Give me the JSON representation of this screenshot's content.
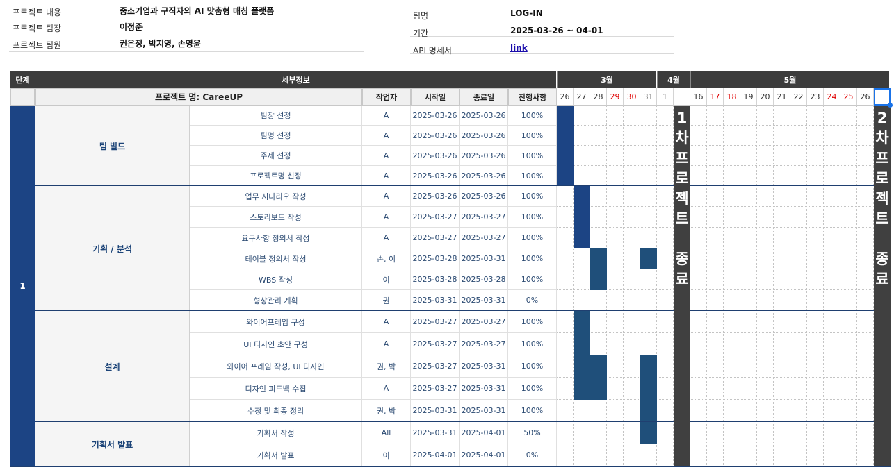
{
  "info_left": [
    {
      "label": "프로젝트 내용",
      "value": "중소기업과 구직자의 AI 맞춤형 매칭 플랫폼"
    },
    {
      "label": "프로젝트 팀장",
      "value": "이정준"
    },
    {
      "label": "프로젝트 팀원",
      "value": "권은정, 박지영, 손영윤"
    }
  ],
  "info_right": [
    {
      "label": "팀명",
      "value": "LOG-IN"
    },
    {
      "label": "기간",
      "value": "2025-03-26 ~ 04-01"
    },
    {
      "label": "API 명세서",
      "value": "link"
    }
  ],
  "header": {
    "stage": "단계",
    "detail": "세부정보",
    "project_name": "프로젝트 명: CareeUP",
    "worker": "작업자",
    "start": "시작일",
    "end": "종료일",
    "progress": "진행사항"
  },
  "months": [
    {
      "label": "3월"
    },
    {
      "label": "4월"
    },
    {
      "label": "5월"
    }
  ],
  "dates": [
    {
      "label": "26",
      "red": false
    },
    {
      "label": "27",
      "red": false
    },
    {
      "label": "28",
      "red": false
    },
    {
      "label": "29",
      "red": true
    },
    {
      "label": "30",
      "red": true
    },
    {
      "label": "31",
      "red": false
    },
    {
      "label": "1",
      "red": false
    },
    {
      "label": "",
      "red": false
    },
    {
      "label": "16",
      "red": false
    },
    {
      "label": "17",
      "red": true
    },
    {
      "label": "18",
      "red": true
    },
    {
      "label": "19",
      "red": false
    },
    {
      "label": "20",
      "red": false
    },
    {
      "label": "21",
      "red": false
    },
    {
      "label": "22",
      "red": false
    },
    {
      "label": "23",
      "red": false
    },
    {
      "label": "24",
      "red": true
    },
    {
      "label": "25",
      "red": true
    },
    {
      "label": "26",
      "red": false
    },
    {
      "label": "",
      "red": false
    }
  ],
  "stage_label": "1",
  "groups": [
    {
      "name": "팀 빌드",
      "tasks": [
        {
          "name": "팀장 선정",
          "worker": "A",
          "start": "2025-03-26",
          "end": "2025-03-26",
          "progress": "100%",
          "bars": [
            0
          ]
        },
        {
          "name": "팀명 선정",
          "worker": "A",
          "start": "2025-03-26",
          "end": "2025-03-26",
          "progress": "100%",
          "bars": [
            0
          ]
        },
        {
          "name": "주제 선정",
          "worker": "A",
          "start": "2025-03-26",
          "end": "2025-03-26",
          "progress": "100%",
          "bars": [
            0
          ]
        },
        {
          "name": "프로젝트명 선정",
          "worker": "A",
          "start": "2025-03-26",
          "end": "2025-03-26",
          "progress": "100%",
          "bars": [
            0
          ]
        }
      ]
    },
    {
      "name": "기획 / 분석",
      "tasks": [
        {
          "name": "업무 시나리오 작성",
          "worker": "A",
          "start": "2025-03-26",
          "end": "2025-03-26",
          "progress": "100%",
          "bars": [
            1
          ]
        },
        {
          "name": "스토리보드 작성",
          "worker": "A",
          "start": "2025-03-27",
          "end": "2025-03-27",
          "progress": "100%",
          "bars": [
            1
          ]
        },
        {
          "name": "요구사항 정의서 작성",
          "worker": "A",
          "start": "2025-03-27",
          "end": "2025-03-27",
          "progress": "100%",
          "bars": [
            1
          ]
        },
        {
          "name": "테이블 정의서 작성",
          "worker": "손, 이",
          "start": "2025-03-28",
          "end": "2025-03-31",
          "progress": "100%",
          "bars": [
            2,
            5
          ]
        },
        {
          "name": "WBS 작성",
          "worker": "이",
          "start": "2025-03-28",
          "end": "2025-03-28",
          "progress": "100%",
          "bars": [
            2
          ]
        },
        {
          "name": "형상관리 계획",
          "worker": "권",
          "start": "2025-03-31",
          "end": "2025-03-31",
          "progress": "0%",
          "bars": []
        }
      ]
    },
    {
      "name": "설계",
      "tasks": [
        {
          "name": "와이어프레임 구성",
          "worker": "A",
          "start": "2025-03-27",
          "end": "2025-03-27",
          "progress": "100%",
          "bars": [
            1
          ]
        },
        {
          "name": "UI 디자인 초안 구성",
          "worker": "A",
          "start": "2025-03-27",
          "end": "2025-03-27",
          "progress": "100%",
          "bars": [
            1
          ]
        },
        {
          "name": "와이어 프레임 작성, UI 디자인",
          "worker": "권, 박",
          "start": "2025-03-27",
          "end": "2025-03-31",
          "progress": "100%",
          "bars": [
            1,
            2,
            5
          ]
        },
        {
          "name": "디자인 피드백 수집",
          "worker": "A",
          "start": "2025-03-27",
          "end": "2025-03-31",
          "progress": "100%",
          "bars": [
            1,
            2,
            5
          ]
        },
        {
          "name": "수정 및 최종 정리",
          "worker": "권, 박",
          "start": "2025-03-31",
          "end": "2025-03-31",
          "progress": "100%",
          "bars": [
            5
          ]
        }
      ]
    },
    {
      "name": "기획서 발표",
      "tasks": [
        {
          "name": "기획서 작성",
          "worker": "All",
          "start": "2025-03-31",
          "end": "2025-04-01",
          "progress": "50%",
          "bars": [
            5
          ]
        },
        {
          "name": "기획서 발표",
          "worker": "이",
          "start": "2025-04-01",
          "end": "2025-04-01",
          "progress": "0%",
          "bars": []
        }
      ]
    }
  ],
  "milestones": [
    {
      "text": "1차프로젝트 종료"
    },
    {
      "text": "2차프로젝트 종료"
    }
  ],
  "colors": {
    "bar_a": "#1c4484",
    "bar_b": "#1f4f7a",
    "header_dark": "#3c3c3c",
    "milestone": "#404040",
    "weekend": "#e00000"
  }
}
